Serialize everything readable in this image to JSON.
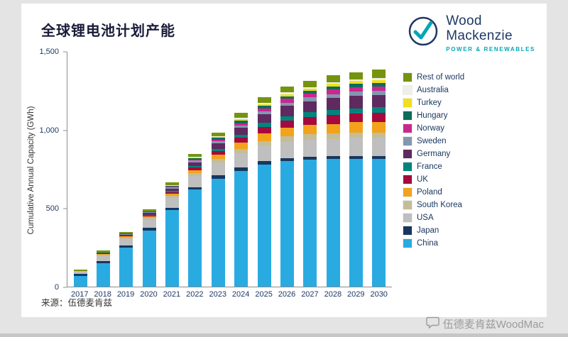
{
  "header": {
    "title": "全球锂电池计划产能"
  },
  "logo": {
    "name": "Wood Mackenzie",
    "line1": "Wood",
    "line2": "Mackenzie",
    "tagline": "POWER & RENEWABLES",
    "navy": "#1f3864",
    "teal": "#00a7b5"
  },
  "footer": {
    "source": "来源：伍德麦肯兹",
    "watermark": "伍德麦肯兹WoodMac"
  },
  "chart_data": {
    "type": "bar",
    "stacked": true,
    "title": "全球锂电池计划产能",
    "xlabel": "",
    "ylabel": "Cumulative Annual Capacity (GWh)",
    "ylim": [
      0,
      1500
    ],
    "yticks": [
      0,
      500,
      1000,
      1500
    ],
    "ytick_labels": [
      "0",
      "500",
      "1,000",
      "1,500"
    ],
    "grid": false,
    "legend_position": "right",
    "legend_order": "reverse of stacking (Rest of world at top, China at bottom)",
    "categories": [
      "2017",
      "2018",
      "2019",
      "2020",
      "2021",
      "2022",
      "2023",
      "2024",
      "2025",
      "2026",
      "2027",
      "2028",
      "2029",
      "2030"
    ],
    "series": [
      {
        "name": "China",
        "color": "#29abe2",
        "values": [
          70,
          150,
          250,
          360,
          490,
          620,
          690,
          740,
          780,
          800,
          810,
          815,
          815,
          815
        ]
      },
      {
        "name": "Japan",
        "color": "#17375e",
        "values": [
          10,
          15,
          15,
          15,
          15,
          15,
          20,
          20,
          20,
          20,
          20,
          20,
          20,
          20
        ]
      },
      {
        "name": "USA",
        "color": "#bfbfbf",
        "values": [
          15,
          30,
          40,
          50,
          60,
          70,
          80,
          90,
          100,
          105,
          110,
          110,
          115,
          115
        ]
      },
      {
        "name": "South Korea",
        "color": "#c4bd97",
        "values": [
          5,
          10,
          10,
          15,
          15,
          20,
          25,
          30,
          30,
          35,
          35,
          35,
          35,
          35
        ]
      },
      {
        "name": "Poland",
        "color": "#f3a21c",
        "values": [
          0,
          5,
          5,
          10,
          15,
          20,
          30,
          40,
          50,
          55,
          60,
          60,
          65,
          65
        ]
      },
      {
        "name": "UK",
        "color": "#a6093d",
        "values": [
          0,
          0,
          5,
          5,
          10,
          15,
          20,
          30,
          40,
          45,
          50,
          55,
          55,
          60
        ]
      },
      {
        "name": "France",
        "color": "#00857d",
        "values": [
          0,
          0,
          0,
          5,
          5,
          10,
          15,
          20,
          25,
          30,
          30,
          35,
          35,
          35
        ]
      },
      {
        "name": "Germany",
        "color": "#5f2a5f",
        "values": [
          0,
          5,
          5,
          10,
          15,
          25,
          35,
          45,
          55,
          65,
          70,
          75,
          80,
          80
        ]
      },
      {
        "name": "Sweden",
        "color": "#8496b0",
        "values": [
          0,
          0,
          5,
          5,
          10,
          10,
          15,
          15,
          20,
          20,
          25,
          25,
          25,
          25
        ]
      },
      {
        "name": "Norway",
        "color": "#c9288f",
        "values": [
          0,
          0,
          0,
          0,
          5,
          5,
          10,
          15,
          20,
          25,
          25,
          30,
          30,
          30
        ]
      },
      {
        "name": "Hungary",
        "color": "#0f6b5c",
        "values": [
          0,
          5,
          5,
          5,
          5,
          10,
          10,
          15,
          15,
          15,
          15,
          20,
          20,
          20
        ]
      },
      {
        "name": "Turkey",
        "color": "#f0e01c",
        "values": [
          0,
          0,
          0,
          0,
          0,
          5,
          5,
          10,
          10,
          15,
          15,
          15,
          20,
          20
        ]
      },
      {
        "name": "Australia",
        "color": "#efefe7",
        "values": [
          0,
          0,
          0,
          0,
          5,
          5,
          5,
          10,
          10,
          10,
          10,
          10,
          10,
          15
        ]
      },
      {
        "name": "Rest of world",
        "color": "#76930f",
        "values": [
          10,
          10,
          10,
          15,
          15,
          20,
          25,
          30,
          35,
          40,
          40,
          45,
          45,
          50
        ]
      }
    ]
  }
}
